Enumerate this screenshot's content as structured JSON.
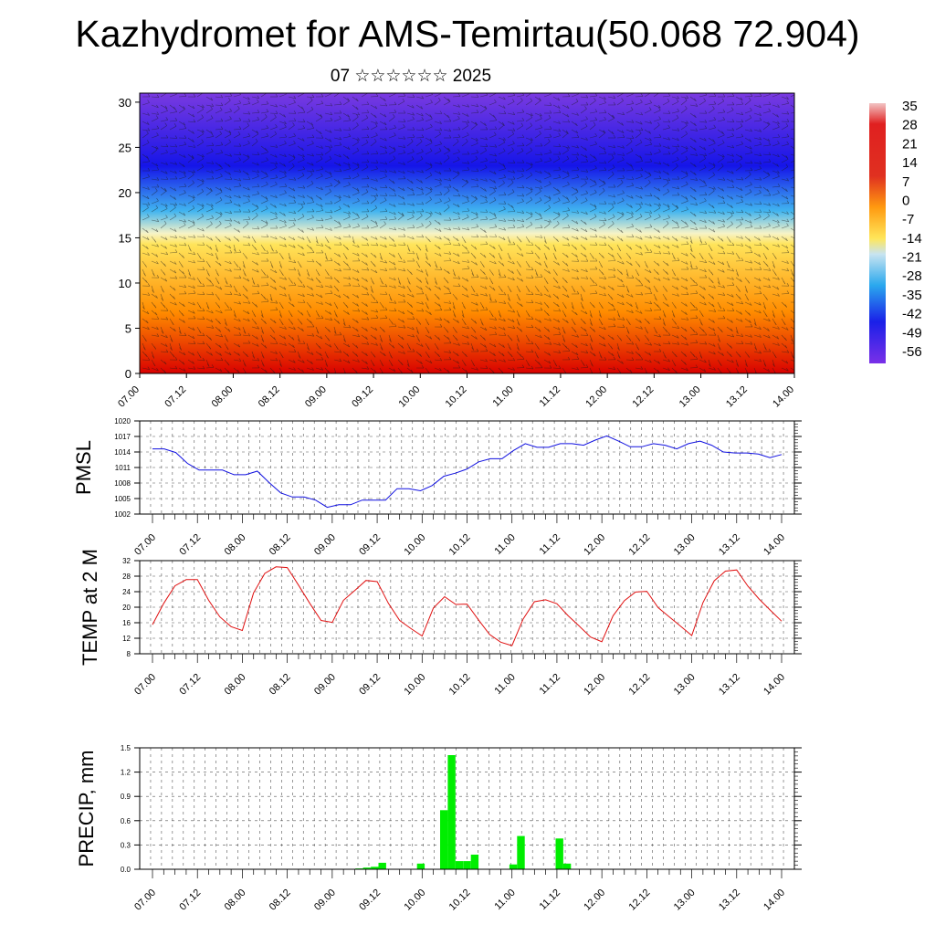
{
  "title": "Kazhydromet for AMS-Temirtau(50.068 72.904)",
  "subtitle": "07 ☆☆☆☆☆☆ 2025",
  "chart_data": [
    {
      "type": "heatmap",
      "name": "upper-air temperature and wind cross-section",
      "x_ticks": [
        "07.00",
        "07.12",
        "08.00",
        "08.12",
        "09.00",
        "09.12",
        "10.00",
        "10.12",
        "11.00",
        "11.12",
        "12.00",
        "12.12",
        "13.00",
        "13.12",
        "14.00"
      ],
      "y_ticks": [
        "0",
        "5",
        "10",
        "15",
        "20",
        "25",
        "30"
      ],
      "ylim": [
        0,
        31
      ],
      "colorbar_labels": [
        "35",
        "28",
        "21",
        "14",
        "7",
        "0",
        "-7",
        "-14",
        "-21",
        "-28",
        "-35",
        "-42",
        "-49",
        "-56"
      ],
      "colors": {
        "hot": "#d90000",
        "orange": "#ff8c00",
        "yellow": "#ffe45a",
        "light": "#f6f3c8",
        "sky": "#40b4f0",
        "blue": "#1515e8",
        "violet": "#7a3ae0"
      }
    },
    {
      "type": "line",
      "ylabel": "PMSL",
      "x_ticks": [
        "07.00",
        "07.12",
        "08.00",
        "08.12",
        "09.00",
        "09.12",
        "10.00",
        "10.12",
        "11.00",
        "11.12",
        "12.00",
        "12.12",
        "13.00",
        "13.12",
        "14.00"
      ],
      "y_ticks": [
        "1002",
        "1005",
        "1008",
        "1011",
        "1014",
        "1017",
        "1020"
      ],
      "ylim": [
        1002,
        1020
      ],
      "color": "#1010e0",
      "values": [
        1014.6,
        1014.6,
        1013.9,
        1011.8,
        1010.5,
        1010.5,
        1010.5,
        1009.6,
        1009.6,
        1010.3,
        1008.1,
        1006.1,
        1005.3,
        1005.3,
        1004.7,
        1003.3,
        1003.8,
        1003.8,
        1004.7,
        1004.7,
        1004.7,
        1006.9,
        1006.9,
        1006.5,
        1007.5,
        1009.3,
        1009.9,
        1010.7,
        1012.1,
        1012.7,
        1012.7,
        1014.3,
        1015.6,
        1014.9,
        1014.9,
        1015.6,
        1015.6,
        1015.3,
        1016.3,
        1017.1,
        1016.1,
        1015.0,
        1015.0,
        1015.6,
        1015.3,
        1014.6,
        1015.6,
        1016.1,
        1015.3,
        1014.0,
        1013.8,
        1013.8,
        1013.6,
        1012.9,
        1013.5
      ]
    },
    {
      "type": "line",
      "ylabel": "TEMP at 2 M",
      "x_ticks": [
        "07.00",
        "07.12",
        "08.00",
        "08.12",
        "09.00",
        "09.12",
        "10.00",
        "10.12",
        "11.00",
        "11.12",
        "12.00",
        "12.12",
        "13.00",
        "13.12",
        "14.00"
      ],
      "y_ticks": [
        "8",
        "12",
        "16",
        "20",
        "24",
        "28",
        "32"
      ],
      "ylim": [
        8,
        32
      ],
      "color": "#e01010",
      "values": [
        15.5,
        21,
        25.5,
        27.1,
        27.1,
        21.8,
        17.5,
        15,
        14,
        23.7,
        28.7,
        30.4,
        30.2,
        25.7,
        21,
        16.6,
        16.1,
        21.8,
        24.3,
        26.9,
        26.6,
        21,
        16.6,
        14.5,
        12.6,
        19.8,
        22.7,
        20.7,
        20.8,
        16.8,
        13,
        11,
        10.1,
        17,
        21.4,
        21.9,
        20.9,
        17.8,
        15.1,
        12.3,
        11.1,
        17.8,
        21.7,
        23.9,
        24.1,
        19.9,
        17.5,
        15.1,
        12.7,
        21.2,
        26.8,
        29.3,
        29.6,
        25.4,
        22.1,
        19.2,
        16.4
      ]
    },
    {
      "type": "bar",
      "ylabel": "PRECIP, mm",
      "x_ticks": [
        "07.00",
        "07.12",
        "08.00",
        "08.12",
        "09.00",
        "09.12",
        "10.00",
        "10.12",
        "11.00",
        "11.12",
        "12.00",
        "12.12",
        "13.00",
        "13.12",
        "14.00"
      ],
      "y_ticks": [
        "0.0",
        "0.3",
        "0.6",
        "0.9",
        "1.2",
        "1.5"
      ],
      "ylim": [
        0,
        1.5
      ],
      "color": "#00ee00",
      "values": [
        0,
        0,
        0,
        0,
        0,
        0,
        0,
        0,
        0,
        0,
        0,
        0,
        0,
        0,
        0,
        0,
        0,
        0,
        0,
        0,
        0,
        0,
        0,
        0,
        0,
        0,
        0,
        0,
        0.01,
        0.02,
        0.03,
        0.08,
        0,
        0,
        0,
        0,
        0.07,
        0,
        0,
        0.73,
        1.41,
        0.1,
        0.1,
        0.18,
        0,
        0,
        0,
        0,
        0.06,
        0.41,
        0,
        0,
        0,
        0,
        0.38,
        0.07,
        0,
        0,
        0,
        0,
        0,
        0,
        0,
        0,
        0,
        0,
        0,
        0,
        0,
        0,
        0,
        0,
        0,
        0,
        0,
        0,
        0,
        0,
        0,
        0,
        0,
        0,
        0,
        0,
        0
      ]
    }
  ]
}
